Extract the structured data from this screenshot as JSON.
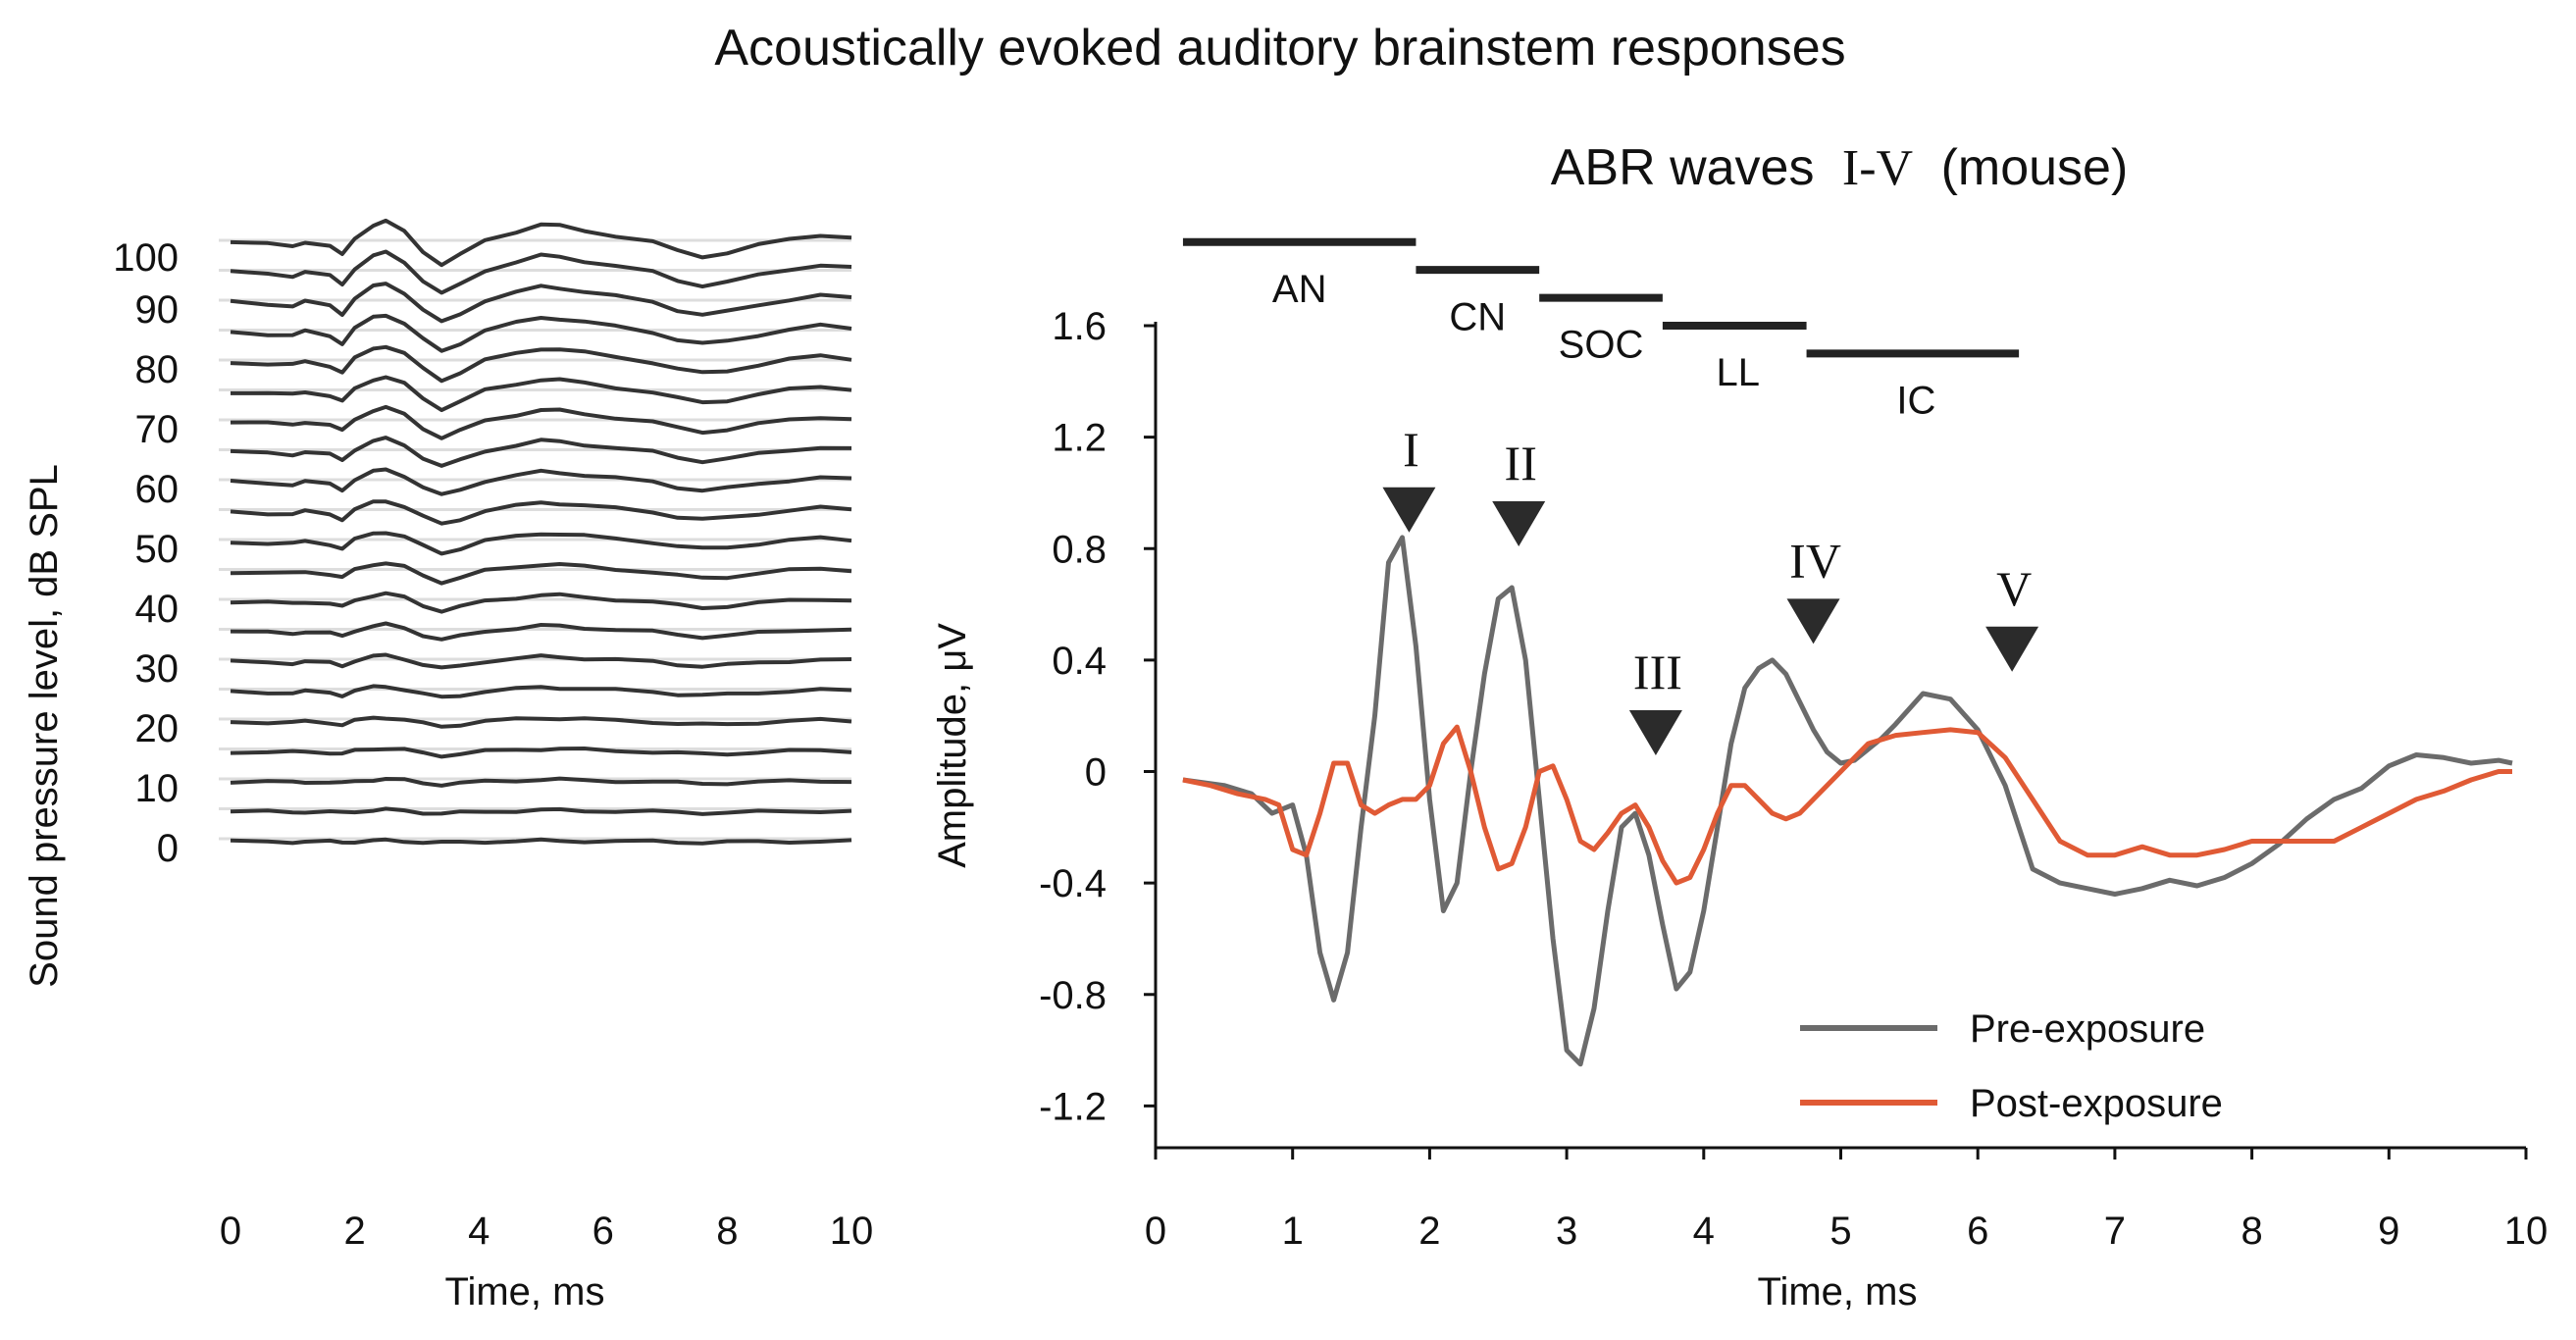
{
  "figure_title": "Acoustically evoked  auditory brainstem responses",
  "colors": {
    "trace": "#333333",
    "pre_exposure": "#6b6b6b",
    "post_exposure": "#e05a35",
    "axis": "#111111",
    "marker": "#2b2b2b",
    "region_bar": "#222222"
  },
  "chart_data": [
    {
      "type": "line",
      "subtype": "stacked-waterfall",
      "title": "",
      "xlabel": "Time, ms",
      "ylabel": "Sound pressure level, dB SPL",
      "xlim": [
        0,
        10
      ],
      "x_ticks": [
        "0",
        "2",
        "4",
        "6",
        "8",
        "10"
      ],
      "y_ticks": [
        "100",
        "90",
        "80",
        "70",
        "60",
        "50",
        "40",
        "30",
        "20",
        "10",
        "0"
      ],
      "levels_db": [
        100,
        95,
        90,
        85,
        80,
        75,
        70,
        65,
        60,
        55,
        50,
        45,
        40,
        35,
        30,
        25,
        20,
        15,
        10,
        5,
        0
      ],
      "series_template": {
        "x": [
          0,
          0.6,
          1.0,
          1.2,
          1.6,
          1.8,
          2.0,
          2.3,
          2.5,
          2.8,
          3.1,
          3.4,
          3.7,
          4.1,
          4.6,
          5.0,
          5.3,
          5.7,
          6.2,
          6.8,
          7.2,
          7.6,
          8.0,
          8.5,
          9.0,
          9.5,
          10.0
        ],
        "y": [
          0.05,
          -0.05,
          -0.12,
          0.08,
          -0.15,
          -0.55,
          0.25,
          0.85,
          1.0,
          0.55,
          -0.35,
          -1.0,
          -0.55,
          0.15,
          0.55,
          0.85,
          0.8,
          0.6,
          0.35,
          0.05,
          -0.35,
          -0.6,
          -0.45,
          -0.1,
          0.2,
          0.4,
          0.25
        ]
      },
      "legend": "none",
      "grid": false
    },
    {
      "type": "line",
      "title": "ABR waves I-V (mouse)",
      "title_main": "ABR waves",
      "title_numerals": "I-V",
      "title_tail": "(mouse)",
      "xlabel": "Time, ms",
      "ylabel": "Amplitude, μV",
      "xlim": [
        0,
        10
      ],
      "ylim": [
        -1.35,
        1.6
      ],
      "x_ticks": [
        "0",
        "1",
        "2",
        "3",
        "4",
        "5",
        "6",
        "7",
        "8",
        "9",
        "10"
      ],
      "y_ticks": [
        "1.6",
        "1.2",
        "0.8",
        "0.4",
        "0",
        "-0.4",
        "-0.8",
        "-1.2"
      ],
      "legend": "bottom-right",
      "grid": false,
      "series": [
        {
          "name": "Pre-exposure",
          "x": [
            0.2,
            0.5,
            0.7,
            0.85,
            1.0,
            1.1,
            1.2,
            1.3,
            1.4,
            1.5,
            1.6,
            1.7,
            1.8,
            1.9,
            2.0,
            2.1,
            2.2,
            2.3,
            2.4,
            2.5,
            2.6,
            2.7,
            2.8,
            2.9,
            3.0,
            3.1,
            3.2,
            3.3,
            3.4,
            3.5,
            3.6,
            3.7,
            3.8,
            3.9,
            4.0,
            4.1,
            4.2,
            4.3,
            4.4,
            4.5,
            4.6,
            4.7,
            4.8,
            4.9,
            5.0,
            5.1,
            5.2,
            5.3,
            5.4,
            5.6,
            5.8,
            6.0,
            6.1,
            6.2,
            6.3,
            6.4,
            6.6,
            6.8,
            7.0,
            7.2,
            7.4,
            7.6,
            7.8,
            8.0,
            8.2,
            8.4,
            8.6,
            8.8,
            9.0,
            9.2,
            9.4,
            9.6,
            9.8,
            9.9
          ],
          "y": [
            -0.03,
            -0.05,
            -0.08,
            -0.15,
            -0.12,
            -0.3,
            -0.65,
            -0.82,
            -0.65,
            -0.2,
            0.2,
            0.75,
            0.84,
            0.45,
            -0.1,
            -0.5,
            -0.4,
            0.0,
            0.35,
            0.62,
            0.66,
            0.4,
            -0.1,
            -0.6,
            -1.0,
            -1.05,
            -0.85,
            -0.5,
            -0.2,
            -0.15,
            -0.3,
            -0.55,
            -0.78,
            -0.72,
            -0.5,
            -0.2,
            0.1,
            0.3,
            0.37,
            0.4,
            0.35,
            0.25,
            0.15,
            0.07,
            0.03,
            0.04,
            0.08,
            0.12,
            0.17,
            0.28,
            0.26,
            0.15,
            0.05,
            -0.05,
            -0.2,
            -0.35,
            -0.4,
            -0.42,
            -0.44,
            -0.42,
            -0.39,
            -0.41,
            -0.38,
            -0.33,
            -0.26,
            -0.17,
            -0.1,
            -0.06,
            0.02,
            0.06,
            0.05,
            0.03,
            0.04,
            0.03
          ]
        },
        {
          "name": "Post-exposure",
          "x": [
            0.2,
            0.4,
            0.6,
            0.8,
            0.9,
            1.0,
            1.1,
            1.2,
            1.3,
            1.4,
            1.5,
            1.6,
            1.7,
            1.8,
            1.9,
            2.0,
            2.1,
            2.2,
            2.3,
            2.4,
            2.5,
            2.6,
            2.7,
            2.8,
            2.9,
            3.0,
            3.1,
            3.2,
            3.3,
            3.4,
            3.5,
            3.6,
            3.7,
            3.8,
            3.9,
            4.0,
            4.1,
            4.2,
            4.3,
            4.4,
            4.5,
            4.6,
            4.7,
            4.8,
            4.9,
            5.0,
            5.2,
            5.4,
            5.6,
            5.8,
            6.0,
            6.2,
            6.4,
            6.6,
            6.8,
            7.0,
            7.2,
            7.4,
            7.6,
            7.8,
            8.0,
            8.2,
            8.4,
            8.6,
            8.8,
            9.0,
            9.2,
            9.4,
            9.6,
            9.8,
            9.9
          ],
          "y": [
            -0.03,
            -0.05,
            -0.08,
            -0.1,
            -0.12,
            -0.28,
            -0.3,
            -0.15,
            0.03,
            0.03,
            -0.12,
            -0.15,
            -0.12,
            -0.1,
            -0.1,
            -0.05,
            0.1,
            0.16,
            0.0,
            -0.2,
            -0.35,
            -0.33,
            -0.2,
            0.0,
            0.02,
            -0.1,
            -0.25,
            -0.28,
            -0.22,
            -0.15,
            -0.12,
            -0.2,
            -0.32,
            -0.4,
            -0.38,
            -0.28,
            -0.15,
            -0.05,
            -0.05,
            -0.1,
            -0.15,
            -0.17,
            -0.15,
            -0.1,
            -0.05,
            0.0,
            0.1,
            0.13,
            0.14,
            0.15,
            0.14,
            0.05,
            -0.1,
            -0.25,
            -0.3,
            -0.3,
            -0.27,
            -0.3,
            -0.3,
            -0.28,
            -0.25,
            -0.25,
            -0.25,
            -0.25,
            -0.2,
            -0.15,
            -0.1,
            -0.07,
            -0.03,
            0.0,
            0.0
          ]
        }
      ],
      "wave_markers": [
        {
          "label": "I",
          "x": 1.85,
          "y": 1.02
        },
        {
          "label": "II",
          "x": 2.65,
          "y": 0.97
        },
        {
          "label": "III",
          "x": 3.65,
          "y": 0.22
        },
        {
          "label": "IV",
          "x": 4.8,
          "y": 0.62
        },
        {
          "label": "V",
          "x": 6.25,
          "y": 0.52
        }
      ],
      "regions": [
        {
          "label": "AN",
          "x0": 0.2,
          "x1": 1.9,
          "y": 1.9,
          "label_x": 1.05,
          "label_y": 1.72
        },
        {
          "label": "CN",
          "x0": 1.9,
          "x1": 2.8,
          "y": 1.8,
          "label_x": 2.35,
          "label_y": 1.62
        },
        {
          "label": "SOC",
          "x0": 2.8,
          "x1": 3.7,
          "y": 1.7,
          "label_x": 3.25,
          "label_y": 1.52
        },
        {
          "label": "LL",
          "x0": 3.7,
          "x1": 4.75,
          "y": 1.6,
          "label_x": 4.25,
          "label_y": 1.42
        },
        {
          "label": "IC",
          "x0": 4.75,
          "x1": 6.3,
          "y": 1.5,
          "label_x": 5.55,
          "label_y": 1.32
        }
      ]
    }
  ]
}
